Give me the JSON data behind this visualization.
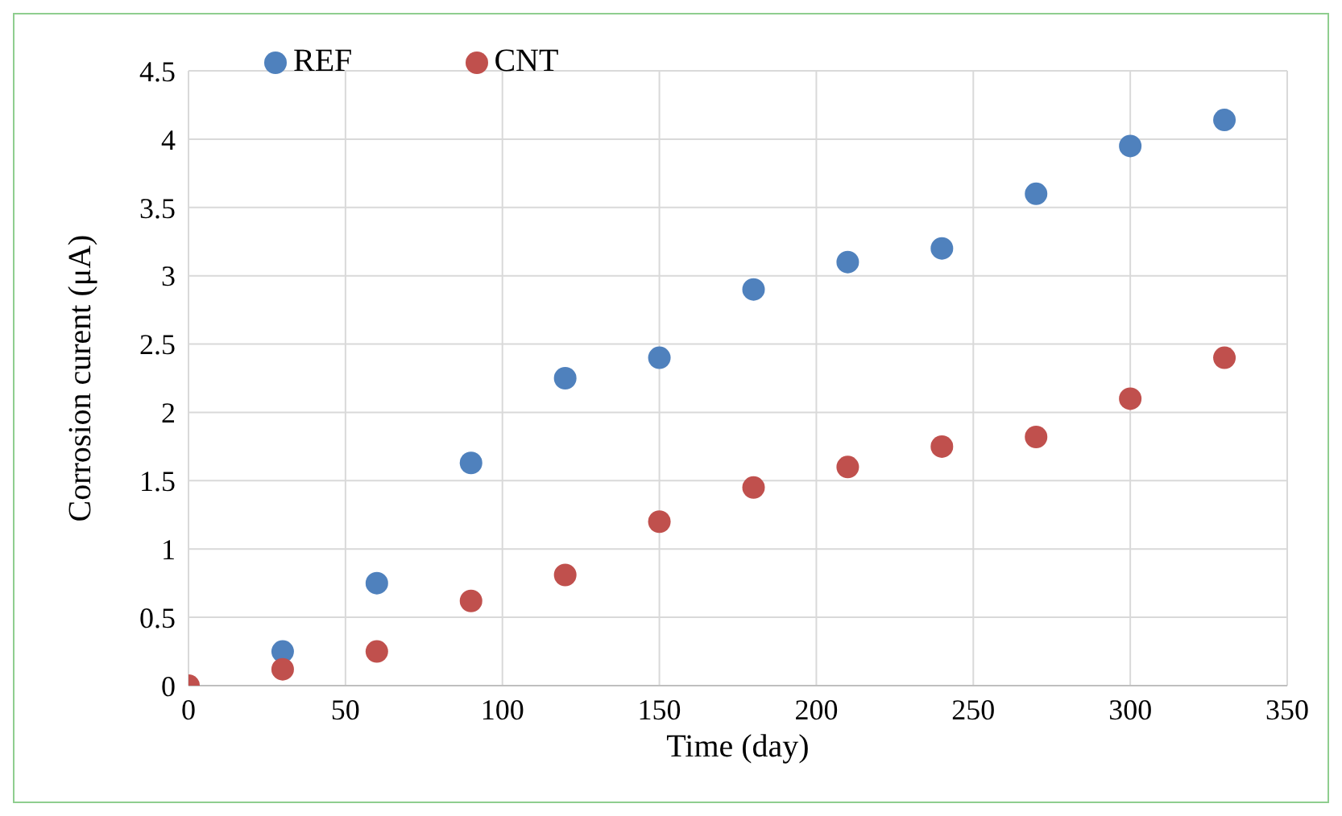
{
  "chart_data": {
    "type": "scatter",
    "xlabel": "Time (day)",
    "ylabel": "Corrosion curent (μA)",
    "x": [
      0,
      30,
      60,
      90,
      120,
      150,
      180,
      210,
      240,
      270,
      300,
      330
    ],
    "series": [
      {
        "name": "REF",
        "color": "#4f81bd",
        "values": [
          null,
          0.25,
          0.75,
          1.63,
          2.25,
          2.4,
          2.9,
          3.1,
          3.2,
          3.6,
          3.95,
          4.14
        ]
      },
      {
        "name": "CNT",
        "color": "#c0504d",
        "values": [
          0,
          0.12,
          0.25,
          0.62,
          0.81,
          1.2,
          1.45,
          1.6,
          1.75,
          1.82,
          2.1,
          2.4
        ]
      }
    ],
    "xlim": [
      0,
      350
    ],
    "xticks": [
      0,
      50,
      100,
      150,
      200,
      250,
      300,
      350
    ],
    "ylim": [
      0,
      4.5
    ],
    "yticks": [
      0,
      0.5,
      1,
      1.5,
      2,
      2.5,
      3,
      3.5,
      4,
      4.5
    ],
    "grid": true,
    "legend": "top left",
    "marker": "circle"
  }
}
